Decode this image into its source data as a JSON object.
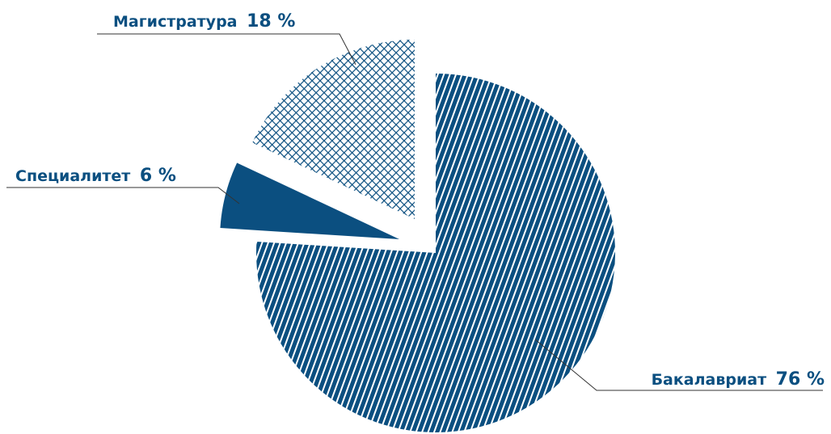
{
  "chart_data": {
    "type": "pie",
    "slices": [
      {
        "name": "Бакалавриат",
        "value": 76,
        "value_label": "76 %",
        "fill": "diagonal-stripes"
      },
      {
        "name": "Специалитет",
        "value": 6,
        "value_label": "6 %",
        "fill": "solid"
      },
      {
        "name": "Магистратура",
        "value": 18,
        "value_label": "18 %",
        "fill": "crosshatch"
      }
    ],
    "exploded": true,
    "legend": "none"
  },
  "colors": {
    "primary": "#0b4f80",
    "background": "#ffffff"
  }
}
